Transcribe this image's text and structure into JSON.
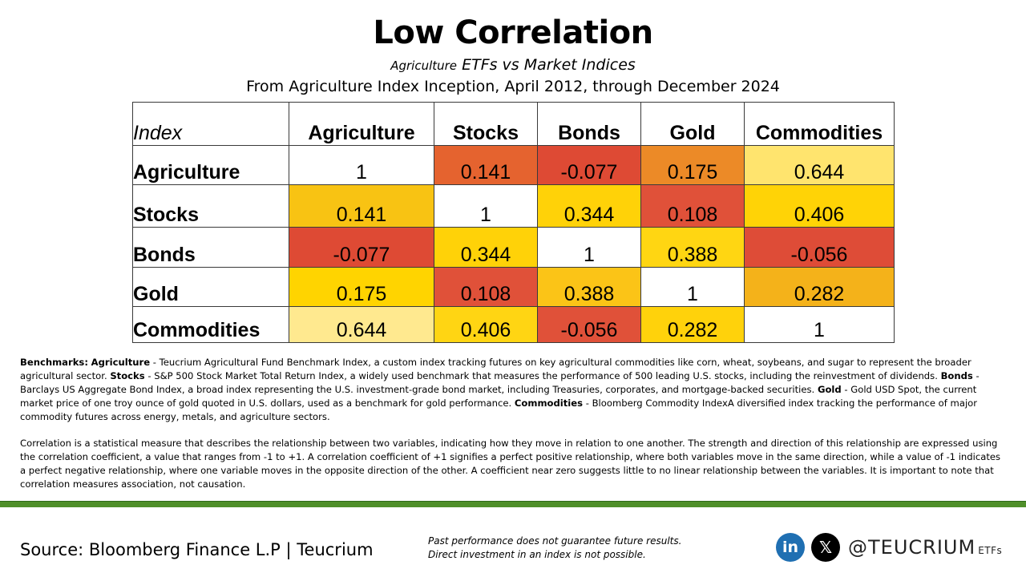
{
  "header": {
    "title": "Low Correlation",
    "subtitle_small": "Agriculture",
    "subtitle_rest": "ETFs vs Market Indices",
    "date_range": "From Agriculture Index Inception, April 2012, through December 2024"
  },
  "table": {
    "corner_label": "Index",
    "columns": [
      "Agriculture",
      "Stocks",
      "Bonds",
      "Gold",
      "Commodities"
    ],
    "rows": [
      {
        "label": "Agriculture",
        "values": [
          "1",
          "0.141",
          "-0.077",
          "0.175",
          "0.644"
        ],
        "colors": [
          "#ffffff",
          "#e5632f",
          "#de4a34",
          "#ec8a27",
          "#ffe46e"
        ]
      },
      {
        "label": "Stocks",
        "values": [
          "0.141",
          "1",
          "0.344",
          "0.108",
          "0.406"
        ],
        "colors": [
          "#f8c313",
          "#ffffff",
          "#ffd208",
          "#e05139",
          "#ffd306"
        ]
      },
      {
        "label": "Bonds",
        "values": [
          "-0.077",
          "0.344",
          "1",
          "0.388",
          "-0.056"
        ],
        "colors": [
          "#de4a34",
          "#ffd208",
          "#ffffff",
          "#ffd612",
          "#de4c37"
        ]
      },
      {
        "label": "Gold",
        "values": [
          "0.175",
          "0.108",
          "0.388",
          "1",
          "0.282"
        ],
        "colors": [
          "#ffd400",
          "#e05139",
          "#fbc417",
          "#ffffff",
          "#f4b21a"
        ]
      },
      {
        "label": "Commodities",
        "values": [
          "0.644",
          "0.406",
          "-0.056",
          "0.282",
          "1"
        ],
        "colors": [
          "#ffe98f",
          "#ffd513",
          "#e05139",
          "#ffd20b",
          "#ffffff"
        ]
      }
    ]
  },
  "notes": {
    "benchmarks_label": "Benchmarks:",
    "ag_name": "Agriculture",
    "ag_desc": " - Teucrium Agricultural Fund Benchmark Index, a custom index tracking futures on key agricultural commodities like corn, wheat, soybeans, and sugar to represent the broader agricultural sector. ",
    "stocks_name": "Stocks",
    "stocks_desc": " - S&P 500 Stock Market Total Return Index, a widely used benchmark that measures the performance of 500 leading U.S. stocks, including the reinvestment of dividends. ",
    "bonds_name": "Bonds",
    "bonds_desc": " - Barclays US Aggregate Bond Index, a broad index representing the U.S. investment-grade bond market, including Treasuries, corporates, and mortgage-backed securities. ",
    "gold_name": "Gold",
    "gold_desc": " - Gold USD Spot, the current market price of one troy ounce of gold quoted in U.S. dollars, used as a benchmark for gold performance. ",
    "commod_name": "Commodities",
    "commod_desc": " - Bloomberg Commodity IndexA diversified index tracking the performance of major commodity futures across energy, metals, and agriculture sectors.",
    "correlation_text": "Correlation is a statistical measure that describes the relationship between two variables, indicating how they move in relation to one another. The strength and direction of this relationship are expressed using the correlation coefficient, a value that ranges from -1 to +1. A correlation coefficient of +1 signifies a perfect positive relationship, where both variables move in the same direction, while a value of -1 indicates a perfect negative relationship, where one variable moves in the opposite direction of the other. A coefficient near zero suggests little to no linear relationship between the variables. It is important to note that correlation measures association, not causation."
  },
  "footer": {
    "source": "Source: Bloomberg Finance L.P | Teucrium",
    "disclaimer_1": "Past performance does not guarantee future results.",
    "disclaimer_2": "Direct investment in an index is not possible.",
    "linkedin_glyph": "in",
    "x_glyph": "𝕏",
    "handle": "@TEUCRIUM",
    "handle_suffix": "ETFs",
    "icons": [
      "linkedin-icon",
      "x-icon"
    ],
    "accent_green": "#4f8f2a"
  }
}
